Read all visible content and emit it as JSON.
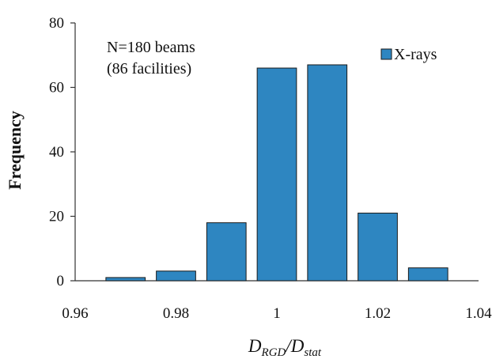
{
  "chart_data": {
    "type": "bar",
    "categories": [
      "0.97",
      "0.98",
      "0.99",
      "1.00",
      "1.01",
      "1.02",
      "1.03"
    ],
    "x": [
      0.97,
      0.98,
      0.99,
      1.0,
      1.01,
      1.02,
      1.03
    ],
    "series": [
      {
        "name": "X-rays",
        "values": [
          1,
          3,
          18,
          66,
          67,
          21,
          4
        ]
      }
    ],
    "bar_color": "#2E86C1",
    "bar_edge_color": "#1a1a1a",
    "xlim": [
      0.96,
      1.04
    ],
    "ylim": [
      0,
      80
    ],
    "x_ticks": [
      "0.96",
      "0.98",
      "1",
      "1.02",
      "1.04"
    ],
    "x_tick_values": [
      0.96,
      0.98,
      1.0,
      1.02,
      1.04
    ],
    "y_ticks": [
      "0",
      "20",
      "40",
      "60",
      "80"
    ],
    "y_tick_values": [
      0,
      20,
      40,
      60,
      80
    ],
    "ylabel": "Frequency",
    "xlabel": {
      "D1": "D",
      "sub1": "RGD",
      "slash": "/",
      "D2": "D",
      "sub2": "stat"
    },
    "annotation": [
      "N=180 beams",
      "(86 facilities)"
    ],
    "legend": {
      "label": "X-rays",
      "position": "top-right"
    },
    "grid": false
  }
}
